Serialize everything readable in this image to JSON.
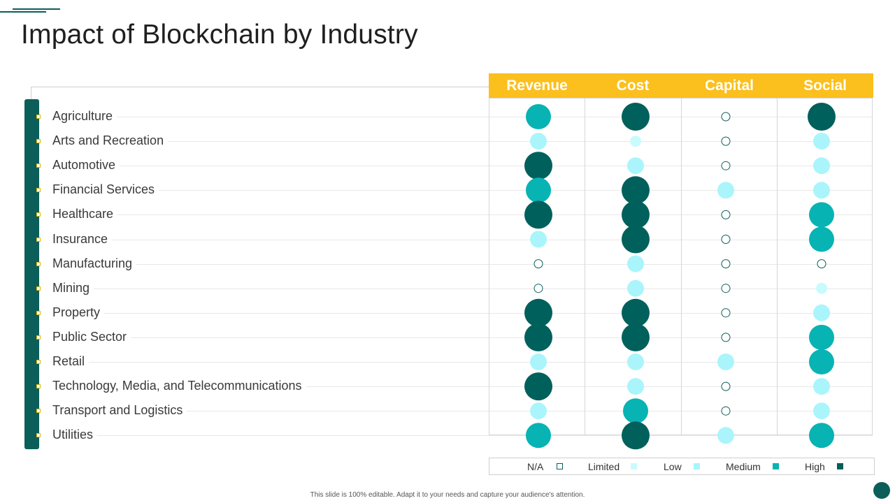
{
  "slide": {
    "title": "Impact of Blockchain by Industry",
    "footer": "This slide is 100% editable. Adapt it to your needs and capture your audience's attention."
  },
  "colors": {
    "accent": "#0b5e5a",
    "header": "#fbbf1e",
    "na": "#0b5e5a",
    "limited": "#c9fbfd",
    "low": "#a9f5fb",
    "medium": "#08b3b3",
    "high": "#00605c",
    "bright": "#14eef0",
    "mid_dark": "#0a8b87"
  },
  "chart_data": {
    "type": "bubble-matrix",
    "columns": [
      "Revenue",
      "Cost",
      "Capital",
      "Social"
    ],
    "rows": [
      "Agriculture",
      "Arts and Recreation",
      "Automotive",
      "Financial Services",
      "Healthcare",
      "Insurance",
      "Manufacturing",
      "Mining",
      "Property",
      "Public Sector",
      "Retail",
      "Technology, Media, and Telecommunications",
      "Transport and Logistics",
      "Utilities"
    ],
    "levels": [
      "N/A",
      "Limited",
      "Low",
      "Medium",
      "High"
    ],
    "values": [
      [
        "Medium",
        "High",
        "N/A",
        "High"
      ],
      [
        "Low",
        "Limited",
        "N/A",
        "Low"
      ],
      [
        "High",
        "Low",
        "N/A",
        "Low"
      ],
      [
        "Medium",
        "High",
        "Low",
        "Low"
      ],
      [
        "High",
        "High",
        "N/A",
        "Medium"
      ],
      [
        "Low",
        "High",
        "N/A",
        "Medium"
      ],
      [
        "N/A",
        "Low",
        "N/A",
        "N/A"
      ],
      [
        "N/A",
        "Low",
        "N/A",
        "Limited"
      ],
      [
        "High",
        "High",
        "N/A",
        "Low"
      ],
      [
        "High",
        "High",
        "N/A",
        "Medium"
      ],
      [
        "Low",
        "Low",
        "Low",
        "Medium"
      ],
      [
        "High",
        "Low",
        "N/A",
        "Low"
      ],
      [
        "Low",
        "Medium",
        "N/A",
        "Low"
      ],
      [
        "Medium",
        "High",
        "Low",
        "Medium"
      ]
    ]
  },
  "legend": {
    "items": [
      {
        "label": "N/A",
        "level": "N/A"
      },
      {
        "label": "Limited",
        "level": "Limited"
      },
      {
        "label": "Low",
        "level": "Low"
      },
      {
        "label": "Medium",
        "level": "Medium"
      },
      {
        "label": "High",
        "level": "High"
      }
    ]
  }
}
